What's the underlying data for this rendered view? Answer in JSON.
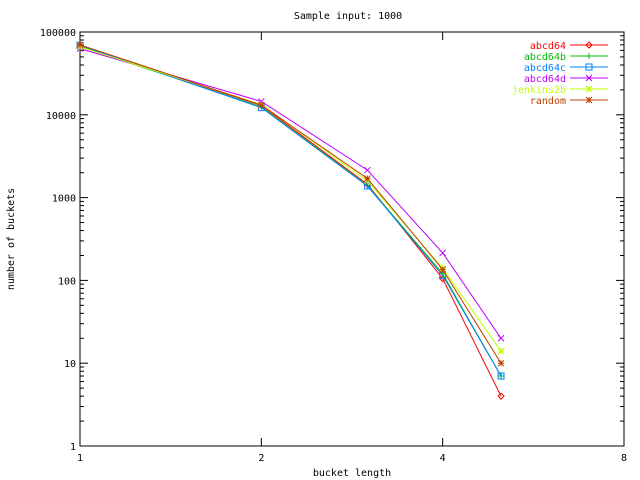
{
  "chart_data": {
    "type": "line",
    "title": "Sample input: 1000",
    "xlabel": "bucket length",
    "ylabel": "number of buckets",
    "x_scale": "log2",
    "y_scale": "log10",
    "xlim": [
      1,
      8
    ],
    "ylim": [
      1,
      100000
    ],
    "x_ticks": [
      1,
      2,
      4,
      8
    ],
    "y_ticks": [
      1,
      10,
      100,
      1000,
      10000,
      100000
    ],
    "x_tick_labels": [
      "1",
      "2",
      "4",
      "8"
    ],
    "y_tick_labels": [
      "1",
      "10",
      "100",
      "1000",
      "10000",
      "100000"
    ],
    "grid": false,
    "legend_position": "top-right",
    "series": [
      {
        "name": "abcd64",
        "color": "#ff0000",
        "marker": "diamond",
        "x": [
          1,
          2,
          3,
          4,
          5
        ],
        "y": [
          68000,
          13000,
          1450,
          105,
          4
        ]
      },
      {
        "name": "abcd64b",
        "color": "#00c000",
        "marker": "plus",
        "x": [
          1,
          2,
          3,
          4,
          5
        ],
        "y": [
          67000,
          12500,
          1400,
          120,
          7
        ]
      },
      {
        "name": "abcd64c",
        "color": "#0080ff",
        "marker": "square",
        "x": [
          1,
          2,
          3,
          4,
          5
        ],
        "y": [
          69000,
          12200,
          1380,
          115,
          7
        ]
      },
      {
        "name": "abcd64d",
        "color": "#c000ff",
        "marker": "cross",
        "x": [
          1,
          2,
          3,
          4,
          5
        ],
        "y": [
          63000,
          14500,
          2150,
          215,
          20
        ]
      },
      {
        "name": "jenkins2b",
        "color": "#c0ff00",
        "marker": "star",
        "x": [
          1,
          2,
          3,
          4,
          5
        ],
        "y": [
          66000,
          13300,
          1600,
          140,
          14
        ]
      },
      {
        "name": "random",
        "color": "#c04000",
        "marker": "star",
        "x": [
          1,
          2,
          3,
          4,
          5
        ],
        "y": [
          70000,
          13100,
          1700,
          135,
          10
        ]
      }
    ]
  }
}
